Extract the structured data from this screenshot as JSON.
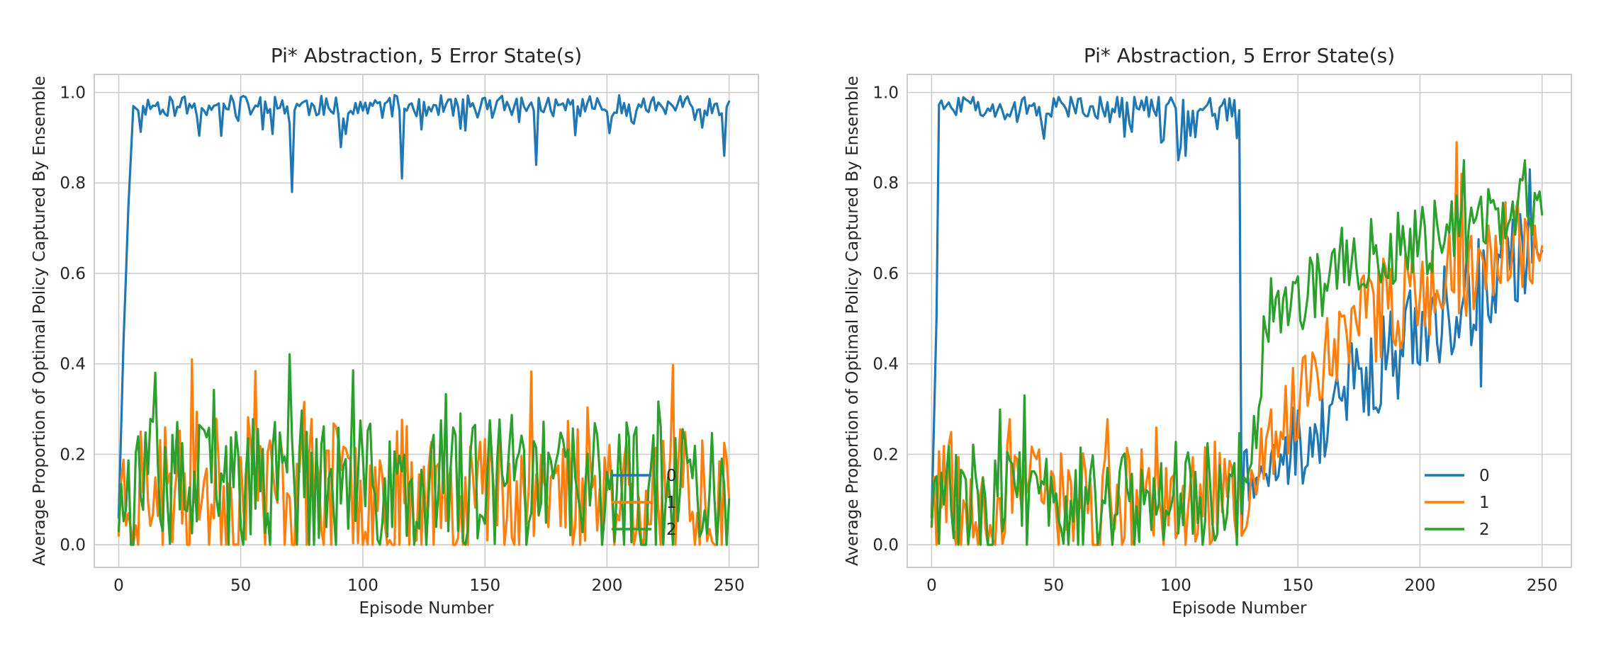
{
  "chart_data": [
    {
      "type": "line",
      "title": "Pi* Abstraction, 5 Error State(s)",
      "xlabel": "Episode Number",
      "ylabel": "Average Proportion of Optimal Policy Captured By Ensemble",
      "xlim": [
        -10,
        262
      ],
      "ylim": [
        -0.05,
        1.04
      ],
      "xticks": [
        0,
        50,
        100,
        150,
        200,
        250
      ],
      "yticks": [
        0.0,
        0.2,
        0.4,
        0.6,
        0.8,
        1.0
      ],
      "grid": true,
      "legend_position": "lower-right",
      "series": [
        {
          "name": "0",
          "color": "#1f77b4",
          "anchors": [
            [
              0,
              0.06
            ],
            [
              2,
              0.45
            ],
            [
              4,
              0.75
            ],
            [
              6,
              0.97
            ],
            [
              8,
              0.96
            ],
            [
              10,
              0.97
            ],
            [
              15,
              0.97
            ],
            [
              70,
              0.93
            ],
            [
              71,
              0.78
            ],
            [
              72,
              0.96
            ],
            [
              80,
              0.97
            ],
            [
              100,
              0.96
            ],
            [
              115,
              0.96
            ],
            [
              116,
              0.81
            ],
            [
              118,
              0.96
            ],
            [
              170,
              0.96
            ],
            [
              171,
              0.84
            ],
            [
              173,
              0.96
            ],
            [
              240,
              0.96
            ],
            [
              246,
              0.95
            ],
            [
              248,
              0.86
            ],
            [
              250,
              0.98
            ]
          ],
          "base": 0.97,
          "noise": 0.015,
          "dips": 0.07,
          "dipProb": 0.18,
          "seed": 11,
          "start": 8,
          "cap": 0.995,
          "floor": 0
        },
        {
          "name": "1",
          "color": "#ff7f0e",
          "anchors": [
            [
              0,
              0.02
            ],
            [
              4,
              0.07
            ],
            [
              8,
              0.0
            ],
            [
              250,
              0.1
            ]
          ],
          "base": 0.12,
          "noise": 0.1,
          "spikes": 0.43,
          "seed": 23,
          "start": 0,
          "cap": 0.44,
          "floor": 0.0
        },
        {
          "name": "2",
          "color": "#2ca02c",
          "anchors": [
            [
              0,
              0.03
            ],
            [
              3,
              0.08
            ],
            [
              250,
              0.1
            ]
          ],
          "base": 0.12,
          "noise": 0.1,
          "spikes": 0.44,
          "seed": 37,
          "start": 0,
          "cap": 0.44,
          "floor": 0.0
        }
      ]
    },
    {
      "type": "line",
      "title": "Pi* Abstraction, 5 Error State(s)",
      "xlabel": "Episode Number",
      "ylabel": "Average Proportion of Optimal Policy Captured By Ensemble",
      "xlim": [
        -10,
        262
      ],
      "ylim": [
        -0.05,
        1.04
      ],
      "xticks": [
        0,
        50,
        100,
        150,
        200,
        250
      ],
      "yticks": [
        0.0,
        0.2,
        0.4,
        0.6,
        0.8,
        1.0
      ],
      "grid": true,
      "legend_position": "lower-right",
      "series": [
        {
          "name": "0",
          "color": "#1f77b4",
          "phases": [
            {
              "from": 0,
              "to": 2,
              "mean": [
                0.06,
                0.5
              ],
              "noise": 0.0
            },
            {
              "from": 3,
              "to": 126,
              "mean": [
                0.97,
                0.97
              ],
              "noise": 0.015,
              "dips": 0.07,
              "dipProb": 0.2,
              "cap": 0.995
            },
            {
              "from": 127,
              "to": 127,
              "mean": [
                0.02,
                0.02
              ],
              "noise": 0.0
            },
            {
              "from": 128,
              "to": 165,
              "mean": [
                0.14,
                0.27
              ],
              "noise": 0.06
            },
            {
              "from": 166,
              "to": 250,
              "mean": [
                0.33,
                0.67
              ],
              "noise": 0.07
            }
          ],
          "fixed": [
            [
              101,
              0.85
            ],
            [
              102,
              0.88
            ],
            [
              104,
              0.86
            ],
            [
              225,
              0.35
            ],
            [
              245,
              0.83
            ],
            [
              250,
              0.65
            ]
          ],
          "seed": 51
        },
        {
          "name": "1",
          "color": "#ff7f0e",
          "phases": [
            {
              "from": 0,
              "to": 126,
              "mean": [
                0.1,
                0.1
              ],
              "noise": 0.08,
              "spikes": 0.28
            },
            {
              "from": 127,
              "to": 129,
              "mean": [
                0.02,
                0.04
              ],
              "noise": 0.0
            },
            {
              "from": 130,
              "to": 165,
              "mean": [
                0.12,
                0.47
              ],
              "noise": 0.06
            },
            {
              "from": 166,
              "to": 250,
              "mean": [
                0.47,
                0.7
              ],
              "noise": 0.07
            }
          ],
          "fixed": [
            [
              215,
              0.89
            ],
            [
              217,
              0.82
            ],
            [
              250,
              0.66
            ]
          ],
          "seed": 67
        },
        {
          "name": "2",
          "color": "#2ca02c",
          "phases": [
            {
              "from": 0,
              "to": 126,
              "mean": [
                0.1,
                0.1
              ],
              "noise": 0.08,
              "spikes": 0.33
            },
            {
              "from": 127,
              "to": 135,
              "mean": [
                0.1,
                0.33
              ],
              "noise": 0.04
            },
            {
              "from": 136,
              "to": 165,
              "mean": [
                0.5,
                0.6
              ],
              "noise": 0.05
            },
            {
              "from": 166,
              "to": 250,
              "mean": [
                0.62,
                0.75
              ],
              "noise": 0.05
            }
          ],
          "fixed": [
            [
              38,
              0.33
            ],
            [
              218,
              0.85
            ],
            [
              243,
              0.85
            ],
            [
              250,
              0.73
            ]
          ],
          "seed": 83
        }
      ]
    }
  ]
}
